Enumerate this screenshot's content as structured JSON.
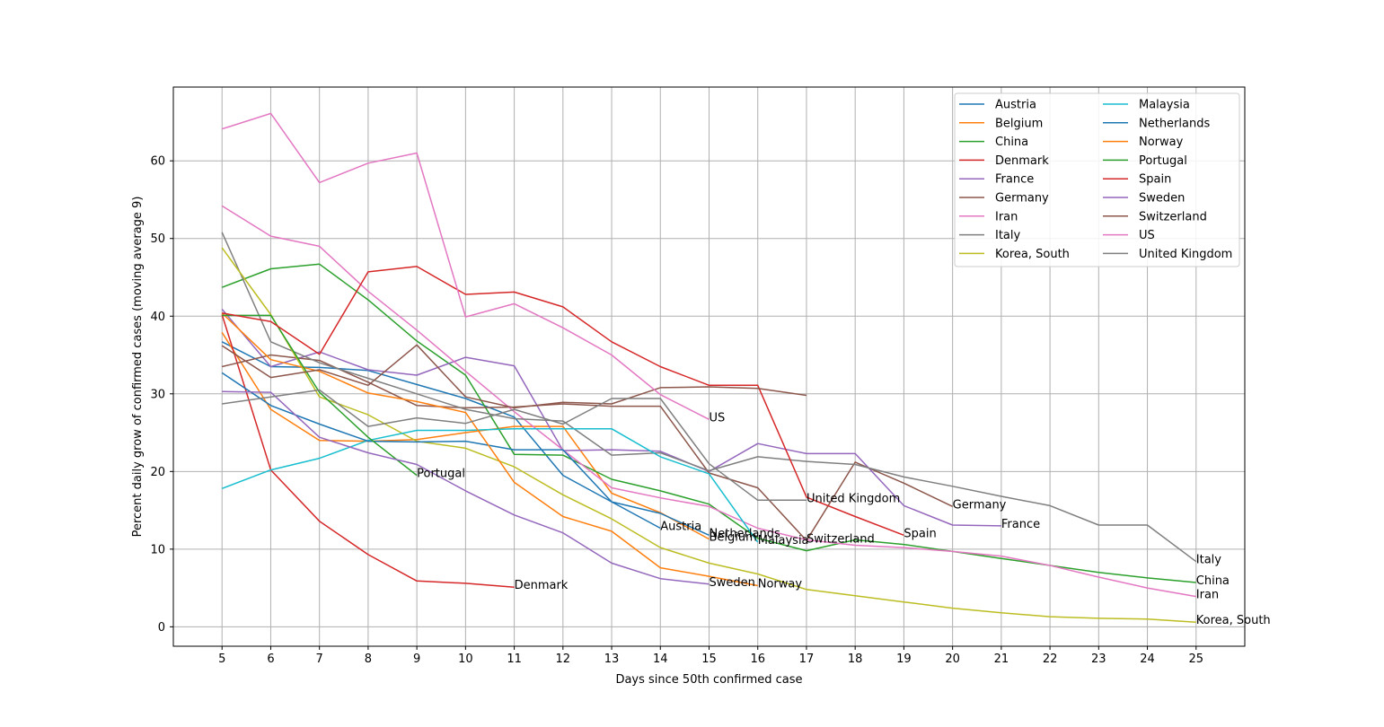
{
  "chart_data": {
    "type": "line",
    "title": "",
    "xlabel": "Days since 50th confirmed case",
    "ylabel": "Percent daily grow of confirmed cases (moving average 9)",
    "xlim": [
      4,
      26
    ],
    "ylim": [
      -2.5,
      69.5
    ],
    "x_ticks": [
      5,
      6,
      7,
      8,
      9,
      10,
      11,
      12,
      13,
      14,
      15,
      16,
      17,
      18,
      19,
      20,
      21,
      22,
      23,
      24,
      25
    ],
    "y_ticks": [
      0,
      10,
      20,
      30,
      40,
      50,
      60
    ],
    "grid": true,
    "legend": {
      "placement": "top-right",
      "columns": 2
    },
    "series": [
      {
        "name": "Austria",
        "color": "#1f77b4",
        "x": [
          5,
          6,
          7,
          8,
          9,
          10,
          11,
          12,
          13,
          14
        ],
        "values": [
          36.7,
          33.5,
          33.4,
          33.0,
          31.2,
          29.4,
          27.0,
          19.5,
          16.1,
          12.7
        ]
      },
      {
        "name": "Belgium",
        "color": "#ff7f0e",
        "x": [
          5,
          6,
          7,
          8,
          9,
          10,
          11,
          12,
          13,
          14,
          15
        ],
        "values": [
          37.9,
          28.0,
          24.0,
          23.9,
          24.1,
          25.0,
          25.8,
          25.8,
          17.2,
          14.7,
          11.3
        ]
      },
      {
        "name": "China",
        "color": "#2ca02c",
        "x": [
          5,
          6,
          7,
          8,
          9,
          10,
          11,
          12,
          13,
          14,
          15,
          16,
          17,
          18,
          19,
          20,
          21,
          22,
          23,
          24,
          25
        ],
        "values": [
          43.7,
          46.1,
          46.7,
          42.1,
          36.8,
          32.4,
          22.2,
          22.1,
          19.0,
          17.5,
          15.8,
          11.4,
          9.8,
          11.2,
          10.6,
          9.7,
          8.8,
          7.9,
          7.0,
          6.3,
          5.7
        ]
      },
      {
        "name": "Denmark",
        "color": "#d62728",
        "x": [
          5,
          6,
          7,
          8,
          9,
          10,
          11
        ],
        "values": [
          40.2,
          20.2,
          13.6,
          9.3,
          5.9,
          5.6,
          5.1
        ]
      },
      {
        "name": "France",
        "color": "#9467bd",
        "x": [
          5,
          6,
          7,
          8,
          9,
          10,
          11,
          12,
          13,
          14,
          15,
          16,
          17,
          18,
          19,
          20,
          21
        ],
        "values": [
          40.9,
          33.5,
          35.4,
          33.1,
          32.4,
          34.7,
          33.6,
          22.7,
          22.8,
          22.6,
          20.0,
          23.6,
          22.3,
          22.3,
          15.6,
          13.1,
          13.0
        ]
      },
      {
        "name": "Germany",
        "color": "#8c564b",
        "x": [
          5,
          6,
          7,
          8,
          9,
          10,
          11,
          12,
          13,
          14,
          15,
          16,
          17,
          18,
          19,
          20
        ],
        "values": [
          33.5,
          35.0,
          34.3,
          31.5,
          28.5,
          28.2,
          28.3,
          28.7,
          28.4,
          28.4,
          19.8,
          17.9,
          11.1,
          21.2,
          18.5,
          15.5
        ]
      },
      {
        "name": "Iran",
        "color": "#e377c2",
        "x": [
          5,
          6,
          7,
          8,
          9,
          10,
          11,
          12,
          13,
          14,
          15,
          16,
          17,
          18,
          19,
          20,
          21,
          22,
          23,
          24,
          25
        ],
        "values": [
          54.2,
          50.3,
          49.0,
          43.2,
          38.2,
          32.9,
          27.7,
          22.8,
          17.9,
          16.6,
          15.5,
          12.7,
          11.2,
          10.5,
          10.2,
          9.7,
          9.1,
          7.9,
          6.4,
          5.0,
          3.9
        ]
      },
      {
        "name": "Italy",
        "color": "#7f7f7f",
        "x": [
          5,
          6,
          7,
          8,
          9,
          10,
          11,
          12,
          13,
          14,
          15,
          16,
          17,
          18,
          19,
          20,
          21,
          22,
          23,
          24,
          25
        ],
        "values": [
          50.8,
          36.7,
          34.0,
          32.0,
          30.0,
          28.0,
          26.8,
          26.5,
          22.1,
          22.4,
          20.1,
          21.9,
          21.3,
          20.9,
          19.3,
          18.1,
          16.8,
          15.6,
          13.1,
          13.1,
          8.4
        ]
      },
      {
        "name": "Korea, South",
        "color": "#bcbd22",
        "x": [
          5,
          6,
          7,
          8,
          9,
          10,
          11,
          12,
          13,
          14,
          15,
          16,
          17,
          18,
          19,
          20,
          21,
          22,
          23,
          24,
          25
        ],
        "values": [
          48.8,
          40.2,
          29.6,
          27.3,
          23.9,
          23.0,
          20.6,
          17.0,
          13.9,
          10.2,
          8.2,
          6.8,
          4.8,
          4.0,
          3.2,
          2.4,
          1.8,
          1.3,
          1.1,
          1.0,
          0.6
        ]
      },
      {
        "name": "Malaysia",
        "color": "#17becf",
        "x": [
          5,
          6,
          7,
          8,
          9,
          10,
          11,
          12,
          13,
          14,
          15,
          16
        ],
        "values": [
          17.8,
          20.2,
          21.7,
          24.0,
          25.3,
          25.3,
          25.5,
          25.5,
          25.5,
          21.9,
          19.7,
          10.9
        ]
      },
      {
        "name": "Netherlands",
        "color": "#1f77b4",
        "x": [
          5,
          6,
          7,
          8,
          9,
          10,
          11,
          12,
          13,
          14,
          15
        ],
        "values": [
          32.7,
          28.5,
          26.1,
          23.9,
          23.8,
          23.9,
          22.8,
          22.8,
          16.1,
          14.6,
          11.8
        ]
      },
      {
        "name": "Norway",
        "color": "#ff7f0e",
        "x": [
          5,
          6,
          7,
          8,
          9,
          10,
          11,
          12,
          13,
          14,
          15,
          16
        ],
        "values": [
          40.4,
          34.4,
          32.9,
          30.1,
          29.0,
          27.6,
          18.6,
          14.2,
          12.3,
          7.6,
          6.5,
          5.3
        ]
      },
      {
        "name": "Portugal",
        "color": "#2ca02c",
        "x": [
          5,
          6,
          7,
          8,
          9
        ],
        "values": [
          40.1,
          40.1,
          30.2,
          24.4,
          19.5
        ]
      },
      {
        "name": "Spain",
        "color": "#d62728",
        "x": [
          5,
          6,
          7,
          8,
          9,
          10,
          11,
          12,
          13,
          14,
          15,
          16,
          17,
          18,
          19
        ],
        "values": [
          40.4,
          39.3,
          35.1,
          45.7,
          46.4,
          42.8,
          43.1,
          41.2,
          36.7,
          33.5,
          31.1,
          31.1,
          16.7,
          14.2,
          11.8
        ]
      },
      {
        "name": "Sweden",
        "color": "#9467bd",
        "x": [
          5,
          6,
          7,
          8,
          9,
          10,
          11,
          12,
          13,
          14,
          15
        ],
        "values": [
          30.3,
          30.2,
          24.4,
          22.4,
          20.9,
          17.5,
          14.4,
          12.1,
          8.2,
          6.2,
          5.5
        ]
      },
      {
        "name": "Switzerland",
        "color": "#8c564b",
        "x": [
          5,
          6,
          7,
          8,
          9,
          10,
          11,
          12,
          13,
          14,
          15,
          16,
          17
        ],
        "values": [
          36.2,
          32.1,
          33.1,
          31.1,
          36.3,
          29.6,
          28.2,
          28.9,
          28.7,
          30.8,
          30.9,
          30.7,
          29.8
        ]
      },
      {
        "name": "US",
        "color": "#e377c2",
        "x": [
          5,
          6,
          7,
          8,
          9,
          10,
          11,
          12,
          13,
          14,
          15
        ],
        "values": [
          64.1,
          66.1,
          57.2,
          59.7,
          61.0,
          39.9,
          41.6,
          38.5,
          35.0,
          29.9,
          26.7
        ]
      },
      {
        "name": "United Kingdom",
        "color": "#7f7f7f",
        "x": [
          5,
          6,
          7,
          8,
          9,
          10,
          11,
          12,
          13,
          14,
          15,
          16,
          17
        ],
        "values": [
          28.7,
          29.6,
          30.5,
          25.8,
          26.9,
          26.2,
          28.0,
          26.1,
          29.4,
          29.4,
          21.0,
          16.3,
          16.3
        ]
      }
    ],
    "annotations": [
      {
        "text": "Austria",
        "x": 14,
        "y": 12.7
      },
      {
        "text": "Belgium",
        "x": 15,
        "y": 11.3
      },
      {
        "text": "China",
        "x": 25,
        "y": 5.7
      },
      {
        "text": "Denmark",
        "x": 11,
        "y": 5.1
      },
      {
        "text": "France",
        "x": 21,
        "y": 13.0
      },
      {
        "text": "Germany",
        "x": 20,
        "y": 15.5
      },
      {
        "text": "Iran",
        "x": 25,
        "y": 3.9
      },
      {
        "text": "Italy",
        "x": 25,
        "y": 8.4
      },
      {
        "text": "Korea, South",
        "x": 25,
        "y": 0.6
      },
      {
        "text": "Malaysia",
        "x": 16,
        "y": 10.9
      },
      {
        "text": "Netherlands",
        "x": 15,
        "y": 11.8
      },
      {
        "text": "Norway",
        "x": 16,
        "y": 5.3
      },
      {
        "text": "Portugal",
        "x": 9,
        "y": 19.5
      },
      {
        "text": "Spain",
        "x": 19,
        "y": 11.8
      },
      {
        "text": "Sweden",
        "x": 15,
        "y": 5.5
      },
      {
        "text": "Switzerland",
        "x": 17,
        "y": 11.1
      },
      {
        "text": "US",
        "x": 15,
        "y": 26.7
      },
      {
        "text": "United Kingdom",
        "x": 17,
        "y": 16.3
      }
    ]
  }
}
